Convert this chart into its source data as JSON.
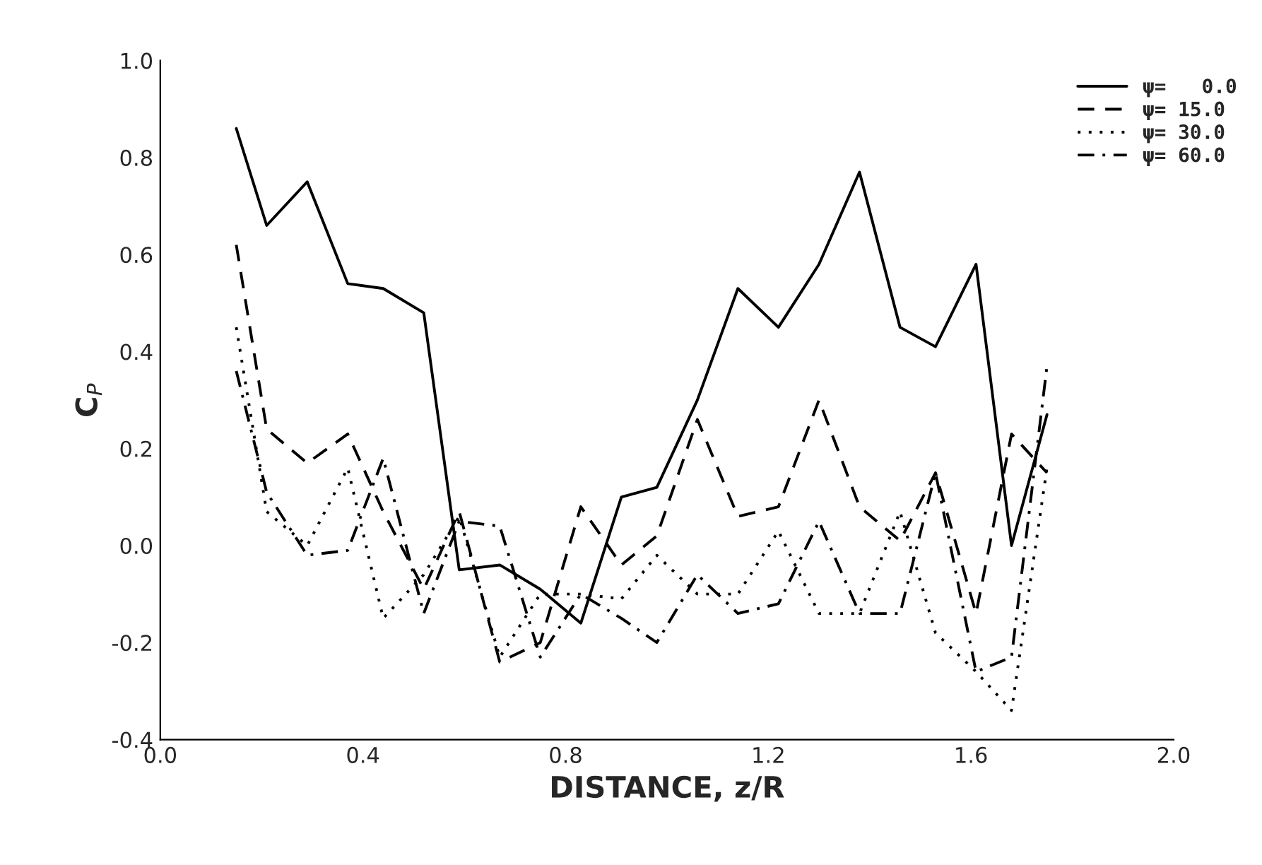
{
  "chart_data": {
    "type": "line",
    "xlabel": "DISTANCE, z/R",
    "ylabel": "C$_{P}$",
    "x": [
      0.15,
      0.21,
      0.29,
      0.37,
      0.44,
      0.52,
      0.59,
      0.67,
      0.75,
      0.83,
      0.91,
      0.98,
      1.06,
      1.14,
      1.22,
      1.3,
      1.38,
      1.46,
      1.53,
      1.61,
      1.68,
      1.75
    ],
    "series": [
      {
        "name": "ψ=   0.0",
        "color": "#000000",
        "line_style": "solid",
        "values": [
          0.86,
          0.66,
          0.75,
          0.54,
          0.53,
          0.48,
          -0.05,
          -0.04,
          -0.09,
          -0.16,
          0.1,
          0.12,
          0.3,
          0.53,
          0.45,
          0.58,
          0.77,
          0.45,
          0.41,
          0.58,
          0.0,
          0.27
        ]
      },
      {
        "name": "ψ= 15.0",
        "color": "#000000",
        "line_style": "dashed",
        "values": [
          0.62,
          0.24,
          0.17,
          0.23,
          0.07,
          -0.09,
          0.07,
          -0.24,
          -0.2,
          0.08,
          -0.04,
          0.02,
          0.26,
          0.06,
          0.08,
          0.3,
          0.08,
          0.01,
          0.15,
          -0.14,
          0.23,
          0.15
        ]
      },
      {
        "name": "ψ= 30.0",
        "color": "#000000",
        "line_style": "dotted",
        "values": [
          0.45,
          0.07,
          0.0,
          0.16,
          -0.15,
          -0.06,
          0.06,
          -0.23,
          -0.1,
          -0.1,
          -0.11,
          -0.02,
          -0.1,
          -0.1,
          0.03,
          -0.14,
          -0.14,
          0.07,
          -0.18,
          -0.26,
          -0.34,
          0.16
        ]
      },
      {
        "name": "ψ= 60.0",
        "color": "#000000",
        "line_style": "dashdot",
        "values": [
          0.36,
          0.11,
          -0.02,
          -0.01,
          0.18,
          -0.14,
          0.05,
          0.04,
          -0.23,
          -0.1,
          -0.15,
          -0.2,
          -0.06,
          -0.14,
          -0.12,
          0.05,
          -0.14,
          -0.14,
          0.15,
          -0.26,
          -0.23,
          0.37
        ]
      }
    ],
    "xlim": [
      0.0,
      2.0
    ],
    "xticks": [
      {
        "value": 0.0,
        "label": "0.0"
      },
      {
        "value": 0.4,
        "label": "0.4"
      },
      {
        "value": 0.8,
        "label": "0.8"
      },
      {
        "value": 1.2,
        "label": "1.2"
      },
      {
        "value": 1.6,
        "label": "1.6"
      },
      {
        "value": 2.0,
        "label": "2.0"
      }
    ],
    "ylim": [
      -0.4,
      1.0
    ],
    "yticks": [
      -0.4,
      -0.2,
      {
        "value": 0.0,
        "label": "0.0"
      },
      0.2,
      0.4,
      0.6,
      0.8,
      {
        "value": 1.0,
        "label": "1.0"
      }
    ],
    "grid": false,
    "legend": "top right"
  }
}
